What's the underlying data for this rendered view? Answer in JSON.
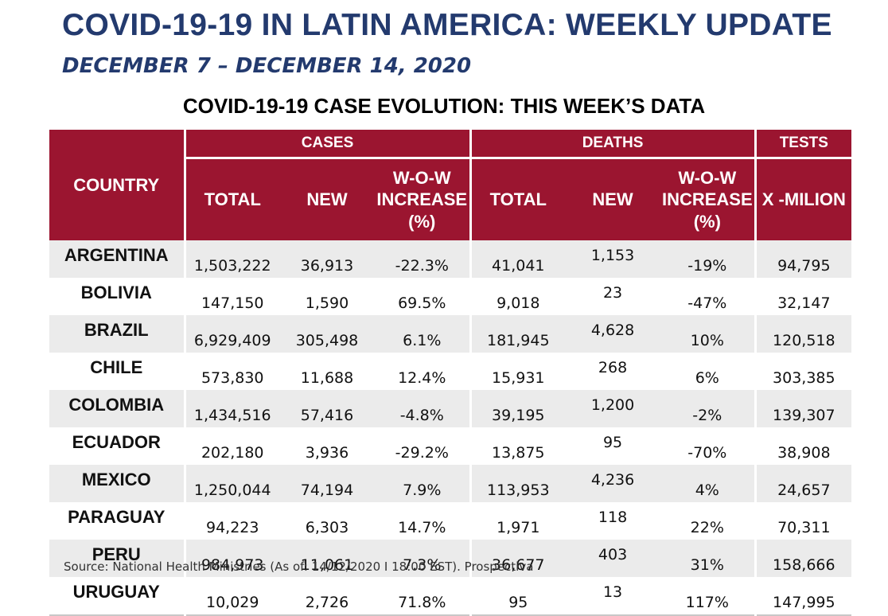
{
  "header": {
    "title": "COVID-19-19 IN LATIN AMERICA: WEEKLY UPDATE",
    "date_range": "DECEMBER 7 – DECEMBER 14, 2020",
    "table_title": "COVID-19-19 CASE EVOLUTION: THIS WEEK’S DATA"
  },
  "table": {
    "country_header": "COUNTRY",
    "groups": {
      "cases": "CASES",
      "deaths": "DEATHS",
      "tests": "TESTS"
    },
    "subheaders": {
      "cases_total": "TOTAL",
      "cases_new": "NEW",
      "cases_wow_1": "W-O-W",
      "cases_wow_2": "INCREASE",
      "cases_wow_3": "(%)",
      "deaths_total": "TOTAL",
      "deaths_new": "NEW",
      "deaths_wow_1": "W-O-W",
      "deaths_wow_2": "INCREASE",
      "deaths_wow_3": "(%)",
      "tests_unit": "X -MILION"
    },
    "rows": [
      {
        "country": "ARGENTINA",
        "cases_total": "1,503,222",
        "cases_new": "36,913",
        "cases_wow": "-22.3%",
        "deaths_total": "41,041",
        "deaths_new": "1,153",
        "deaths_wow": "-19%",
        "tests": "94,795"
      },
      {
        "country": "BOLIVIA",
        "cases_total": "147,150",
        "cases_new": "1,590",
        "cases_wow": "69.5%",
        "deaths_total": "9,018",
        "deaths_new": "23",
        "deaths_wow": "-47%",
        "tests": "32,147"
      },
      {
        "country": "BRAZIL",
        "cases_total": "6,929,409",
        "cases_new": "305,498",
        "cases_wow": "6.1%",
        "deaths_total": "181,945",
        "deaths_new": "4,628",
        "deaths_wow": "10%",
        "tests": "120,518"
      },
      {
        "country": "CHILE",
        "cases_total": "573,830",
        "cases_new": "11,688",
        "cases_wow": "12.4%",
        "deaths_total": "15,931",
        "deaths_new": "268",
        "deaths_wow": "6%",
        "tests": "303,385"
      },
      {
        "country": "COLOMBIA",
        "cases_total": "1,434,516",
        "cases_new": "57,416",
        "cases_wow": "-4.8%",
        "deaths_total": "39,195",
        "deaths_new": "1,200",
        "deaths_wow": "-2%",
        "tests": "139,307"
      },
      {
        "country": "ECUADOR",
        "cases_total": "202,180",
        "cases_new": "3,936",
        "cases_wow": "-29.2%",
        "deaths_total": "13,875",
        "deaths_new": "95",
        "deaths_wow": "-70%",
        "tests": "38,908"
      },
      {
        "country": "MEXICO",
        "cases_total": "1,250,044",
        "cases_new": "74,194",
        "cases_wow": "7.9%",
        "deaths_total": "113,953",
        "deaths_new": "4,236",
        "deaths_wow": "4%",
        "tests": "24,657"
      },
      {
        "country": "PARAGUAY",
        "cases_total": "94,223",
        "cases_new": "6,303",
        "cases_wow": "14.7%",
        "deaths_total": "1,971",
        "deaths_new": "118",
        "deaths_wow": "22%",
        "tests": "70,311"
      },
      {
        "country": "PERU",
        "cases_total": "984,973",
        "cases_new": "11,061",
        "cases_wow": "7.3%",
        "deaths_total": "36,677",
        "deaths_new": "403",
        "deaths_wow": "31%",
        "tests": "158,666"
      },
      {
        "country": "URUGUAY",
        "cases_total": "10,029",
        "cases_new": "2,726",
        "cases_wow": "71.8%",
        "deaths_total": "95",
        "deaths_new": "13",
        "deaths_wow": "117%",
        "tests": "147,995"
      }
    ]
  },
  "footer": {
    "source": "Source: National Health Ministries (As of: 14/12/2020 I 18:00 EST). Prospectiva"
  }
}
